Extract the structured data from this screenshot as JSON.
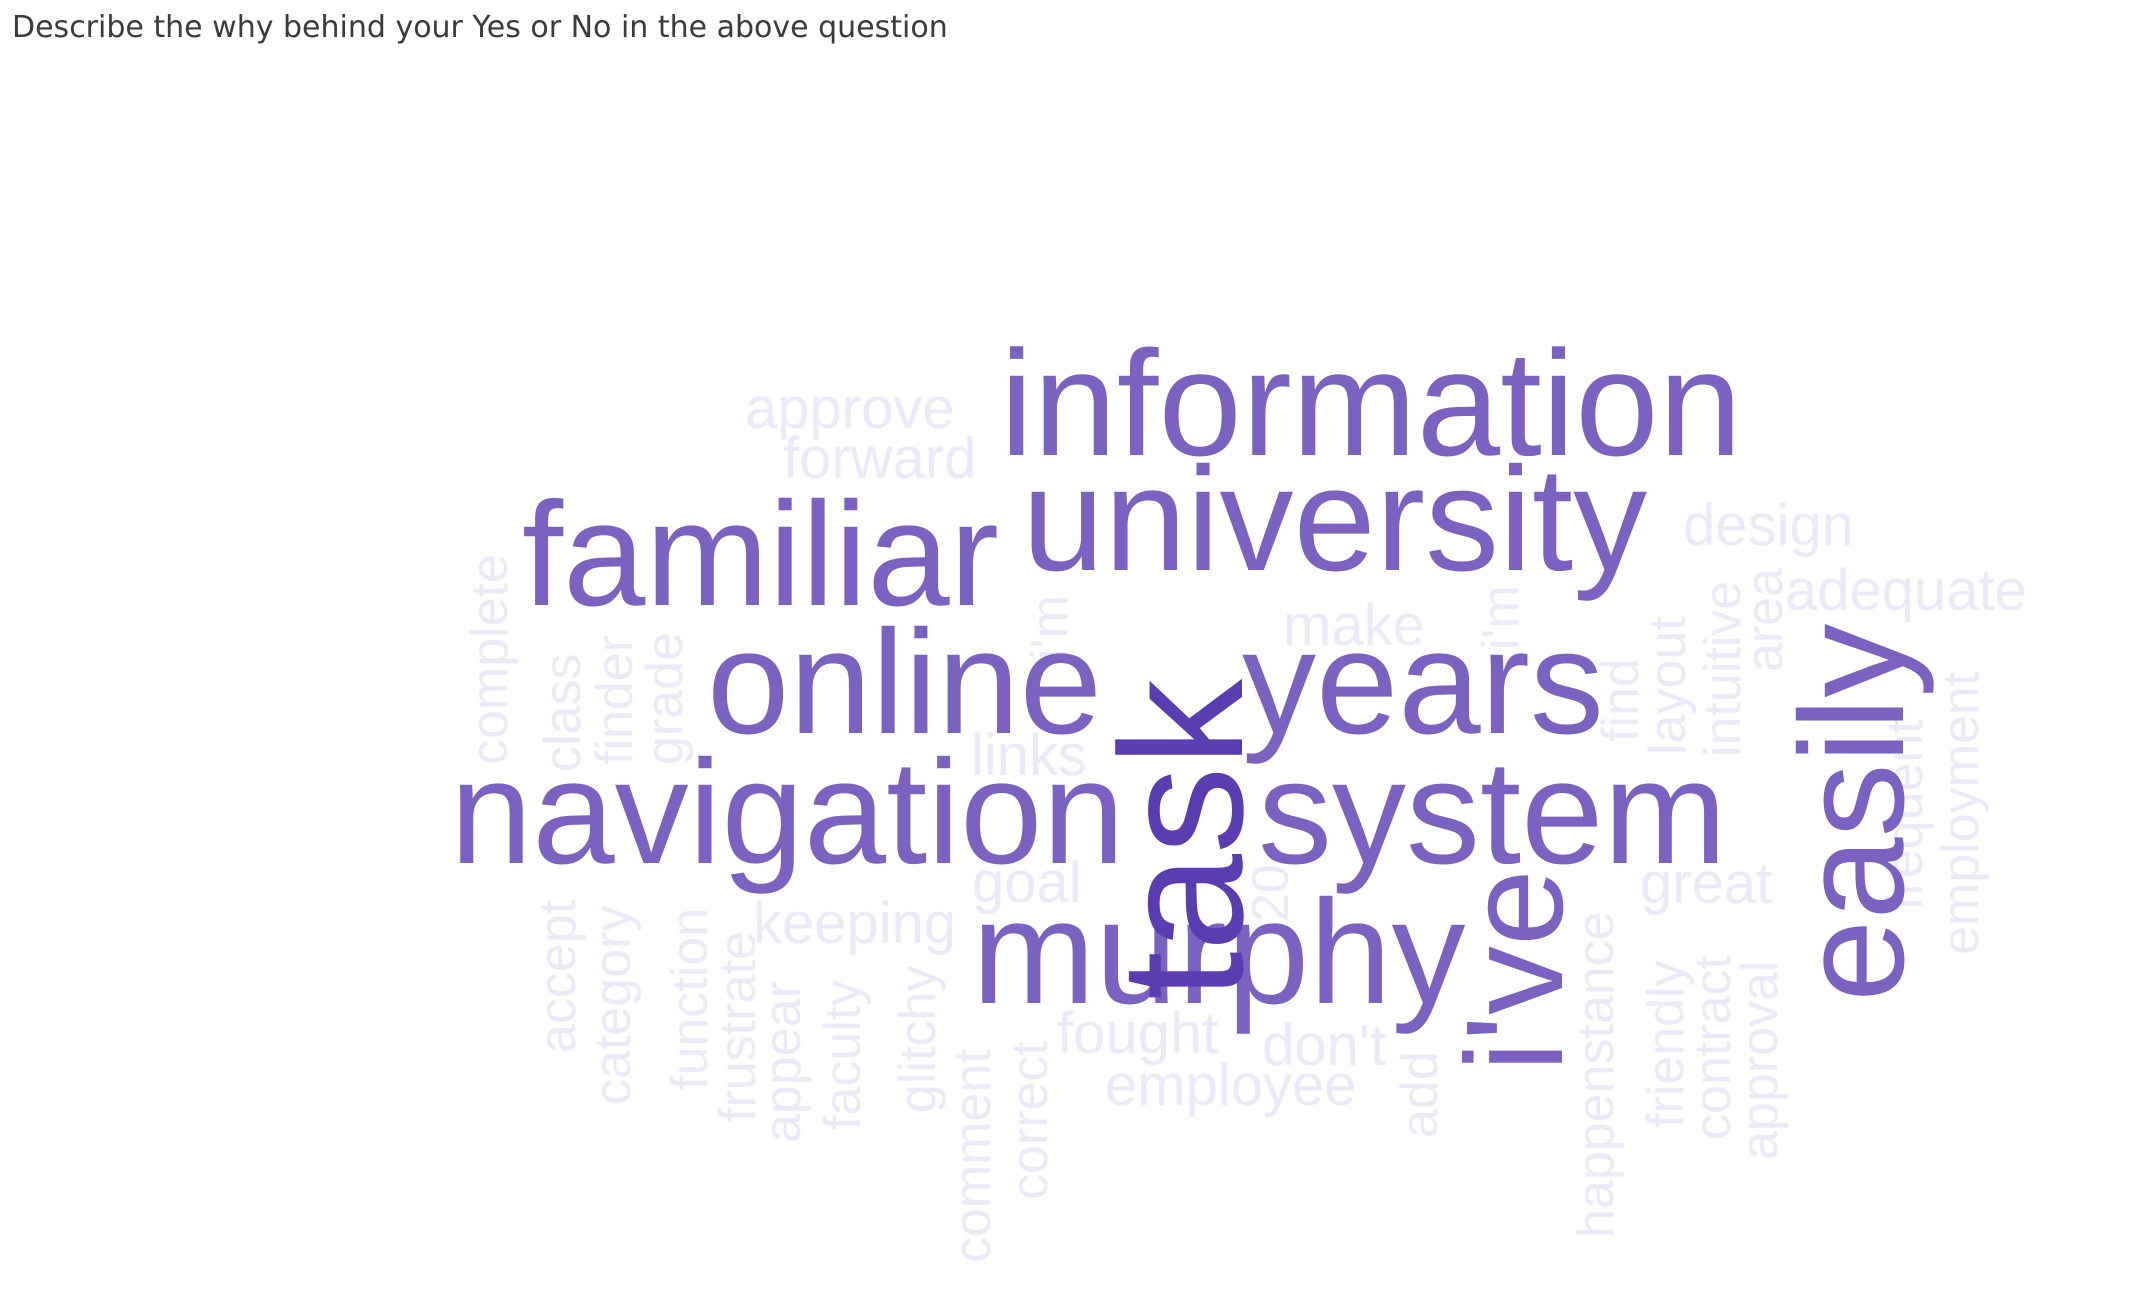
{
  "question": {
    "title": "Describe the why behind your Yes or No in the above question"
  },
  "chart_data": {
    "type": "wordcloud",
    "colors": {
      "top": "#5a3db0",
      "high": "#7b62c1",
      "low": "#eceaf6"
    },
    "words": [
      {
        "text": "task",
        "weight": 100,
        "tier": "top"
      },
      {
        "text": "information",
        "weight": 82,
        "tier": "high"
      },
      {
        "text": "university",
        "weight": 80,
        "tier": "high"
      },
      {
        "text": "familiar",
        "weight": 78,
        "tier": "high"
      },
      {
        "text": "online",
        "weight": 78,
        "tier": "high"
      },
      {
        "text": "years",
        "weight": 78,
        "tier": "high"
      },
      {
        "text": "navigation",
        "weight": 78,
        "tier": "high"
      },
      {
        "text": "system",
        "weight": 78,
        "tier": "high"
      },
      {
        "text": "murphy",
        "weight": 78,
        "tier": "high"
      },
      {
        "text": "easily",
        "weight": 78,
        "tier": "high"
      },
      {
        "text": "i've",
        "weight": 78,
        "tier": "high"
      },
      {
        "text": "approve",
        "weight": 35,
        "tier": "low"
      },
      {
        "text": "forward",
        "weight": 35,
        "tier": "low"
      },
      {
        "text": "design",
        "weight": 35,
        "tier": "low"
      },
      {
        "text": "adequate",
        "weight": 35,
        "tier": "low"
      },
      {
        "text": "make",
        "weight": 35,
        "tier": "low"
      },
      {
        "text": "links",
        "weight": 35,
        "tier": "low"
      },
      {
        "text": "goal",
        "weight": 35,
        "tier": "low"
      },
      {
        "text": "keeping",
        "weight": 35,
        "tier": "low"
      },
      {
        "text": "fought",
        "weight": 35,
        "tier": "low"
      },
      {
        "text": "employee",
        "weight": 35,
        "tier": "low"
      },
      {
        "text": "don't",
        "weight": 35,
        "tier": "low"
      },
      {
        "text": "great",
        "weight": 35,
        "tier": "low"
      },
      {
        "text": "complete",
        "weight": 35,
        "tier": "low"
      },
      {
        "text": "class",
        "weight": 35,
        "tier": "low"
      },
      {
        "text": "finder",
        "weight": 35,
        "tier": "low"
      },
      {
        "text": "grade",
        "weight": 35,
        "tier": "low"
      },
      {
        "text": "i'm",
        "weight": 35,
        "tier": "low"
      },
      {
        "text": "i'm",
        "weight": 35,
        "tier": "low"
      },
      {
        "text": "find",
        "weight": 35,
        "tier": "low"
      },
      {
        "text": "layout",
        "weight": 35,
        "tier": "low"
      },
      {
        "text": "intuitive",
        "weight": 35,
        "tier": "low"
      },
      {
        "text": "area",
        "weight": 35,
        "tier": "low"
      },
      {
        "text": "frequent",
        "weight": 35,
        "tier": "low"
      },
      {
        "text": "employment",
        "weight": 35,
        "tier": "low"
      },
      {
        "text": "20",
        "weight": 35,
        "tier": "low"
      },
      {
        "text": "accept",
        "weight": 35,
        "tier": "low"
      },
      {
        "text": "category",
        "weight": 35,
        "tier": "low"
      },
      {
        "text": "function",
        "weight": 35,
        "tier": "low"
      },
      {
        "text": "frustrate",
        "weight": 35,
        "tier": "low"
      },
      {
        "text": "appear",
        "weight": 35,
        "tier": "low"
      },
      {
        "text": "faculty",
        "weight": 35,
        "tier": "low"
      },
      {
        "text": "glitchy",
        "weight": 35,
        "tier": "low"
      },
      {
        "text": "comment",
        "weight": 35,
        "tier": "low"
      },
      {
        "text": "correct",
        "weight": 35,
        "tier": "low"
      },
      {
        "text": "add",
        "weight": 35,
        "tier": "low"
      },
      {
        "text": "happenstance",
        "weight": 35,
        "tier": "low"
      },
      {
        "text": "friendly",
        "weight": 35,
        "tier": "low"
      },
      {
        "text": "contract",
        "weight": 35,
        "tier": "low"
      },
      {
        "text": "approval",
        "weight": 35,
        "tier": "low"
      }
    ]
  }
}
